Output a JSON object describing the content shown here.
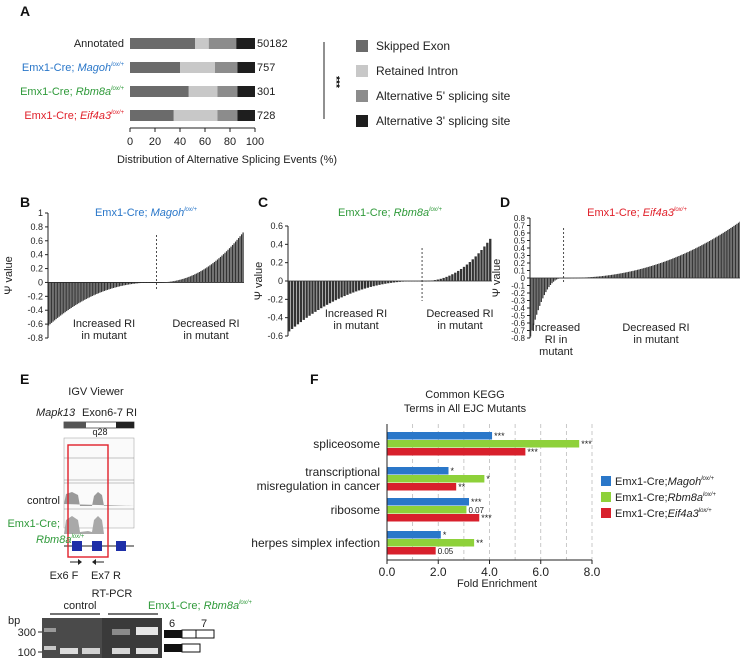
{
  "panels": {
    "A": "A",
    "B": "B",
    "C": "C",
    "D": "D",
    "E": "E",
    "F": "F"
  },
  "chart_data": [
    {
      "id": "A",
      "type": "bar",
      "stacked": true,
      "orientation": "horizontal",
      "categories": [
        {
          "pre": "Annotated",
          "gene": "",
          "sup": "",
          "color": "#222222"
        },
        {
          "pre": "Emx1-Cre; ",
          "gene": "Magoh",
          "sup": "lox/+",
          "color": "#2a77c9"
        },
        {
          "pre": "Emx1-Cre; ",
          "gene": "Rbm8a",
          "sup": "lox/+",
          "color": "#2f9a3a"
        },
        {
          "pre": "Emx1-Cre; ",
          "gene": "Eif4a3",
          "sup": "lox/+",
          "color": "#e0202a"
        }
      ],
      "counts": [
        "50182",
        "757",
        "301",
        "728"
      ],
      "series": [
        {
          "name": "Skipped Exon",
          "color": "#6b6b6b",
          "values": [
            52,
            40,
            47,
            35
          ]
        },
        {
          "name": "Retained Intron",
          "color": "#c8c8c8",
          "values": [
            11,
            28,
            23,
            35
          ]
        },
        {
          "name": "Alternative 5' splicing site",
          "color": "#8c8c8c",
          "values": [
            22,
            18,
            16,
            16
          ]
        },
        {
          "name": "Alternative 3' splicing site",
          "color": "#1e1e1e",
          "values": [
            15,
            14,
            14,
            14
          ]
        }
      ],
      "xticks": [
        "0",
        "20",
        "40",
        "60",
        "80",
        "100"
      ],
      "xlim": [
        0,
        100
      ],
      "xlabel": "Distribution of Alternative Splicing Events (%)",
      "significance": "***"
    },
    {
      "id": "B",
      "type": "bar",
      "title_pre": "Emx1-Cre; ",
      "title_gene": "Magoh",
      "title_sup": "lox/+",
      "title_color": "#2a77c9",
      "ylabel": "Ψ value",
      "ylim": [
        -0.8,
        1.0
      ],
      "yticks": [
        "1",
        "0.8",
        "0.6",
        "0.4",
        "0.2",
        "0",
        "-0.2",
        "-0.4",
        "-0.6",
        "-0.8"
      ],
      "n_bars": 130,
      "n_neg": 72,
      "min": -0.62,
      "max": 0.72,
      "left_label": [
        "Increased RI",
        "in mutant"
      ],
      "right_label": [
        "Decreased RI",
        "in mutant"
      ]
    },
    {
      "id": "C",
      "type": "bar",
      "title_pre": "Emx1-Cre; ",
      "title_gene": "Rbm8a",
      "title_sup": "lox/+",
      "title_color": "#2f9a3a",
      "ylabel": "Ψ value",
      "ylim": [
        -0.6,
        0.6
      ],
      "yticks": [
        "0.6",
        "0.4",
        "0.2",
        "0",
        "-0.2",
        "-0.4",
        "-0.6"
      ],
      "n_bars": 70,
      "n_neg": 46,
      "min": -0.55,
      "max": 0.46,
      "left_label": [
        "Increased RI",
        "in mutant"
      ],
      "right_label": [
        "Decreased RI",
        "in mutant"
      ]
    },
    {
      "id": "D",
      "type": "bar",
      "title_pre": "Emx1-Cre; ",
      "title_gene": "Eif4a3",
      "title_sup": "lox/+",
      "title_color": "#e0202a",
      "ylabel": "Ψ value",
      "ylim": [
        -0.8,
        0.8
      ],
      "yticks": [
        "0.8",
        "0.7",
        "0.6",
        "0.5",
        "0.4",
        "0.3",
        "0.2",
        "0.1",
        "0",
        "-0.1",
        "-0.2",
        "-0.3",
        "-0.4",
        "-0.5",
        "-0.6",
        "-0.7",
        "-0.8"
      ],
      "n_bars": 140,
      "n_neg": 22,
      "min": -0.78,
      "max": 0.78,
      "left_label": [
        "Increased",
        "RI in",
        "mutant"
      ],
      "right_label": [
        "Decreased RI",
        "in mutant"
      ]
    },
    {
      "id": "F",
      "type": "bar",
      "orientation": "horizontal",
      "title": [
        "Common KEGG",
        "Terms in All EJC Mutants"
      ],
      "categories": [
        [
          "spliceosome"
        ],
        [
          "transcriptional",
          "misregulation in cancer"
        ],
        [
          "ribosome"
        ],
        [
          "herpes simplex infection"
        ]
      ],
      "series": [
        {
          "pre": "Emx1-Cre;",
          "gene": "Magoh",
          "sup": "lox/+",
          "color": "#2a77c9",
          "values": [
            4.1,
            2.4,
            3.2,
            2.1
          ],
          "labels": [
            "***",
            "*",
            "***",
            "*"
          ]
        },
        {
          "pre": "Emx1-Cre;",
          "gene": "Rbm8a",
          "sup": "lox/+",
          "color": "#8ed13a",
          "values": [
            7.5,
            3.8,
            3.1,
            3.4
          ],
          "labels": [
            "***",
            "*",
            "0.07",
            "**"
          ]
        },
        {
          "pre": "Emx1-Cre;",
          "gene": "Eif4a3",
          "sup": "lox/+",
          "color": "#d8202c",
          "values": [
            5.4,
            2.7,
            3.6,
            1.9
          ],
          "labels": [
            "***",
            "**",
            "***",
            "0.05"
          ]
        }
      ],
      "xticks": [
        "0.0",
        "2.0",
        "4.0",
        "6.0",
        "8.0"
      ],
      "xlim": [
        0,
        8
      ],
      "xlabel": "Fold Enrichment"
    }
  ],
  "igv": {
    "title": "IGV Viewer",
    "gene": "Mapk13",
    "region": "Exon6-7 RI",
    "scale_label": "q28",
    "track_labels": [
      "control"
    ],
    "mutant_label": {
      "pre": "Emx1-Cre;",
      "gene": "Rbm8a",
      "sup": "lox/+"
    },
    "primers": [
      "Ex6 F",
      "Ex7 R"
    ]
  },
  "gel": {
    "title": "RT-PCR",
    "control": "control",
    "mutant": {
      "pre": "Emx1-Cre; ",
      "gene": "Rbm8a",
      "sup": "lox/+"
    },
    "unit": "bp",
    "markers": [
      "300",
      "100"
    ],
    "exons": [
      "6",
      "7"
    ]
  }
}
